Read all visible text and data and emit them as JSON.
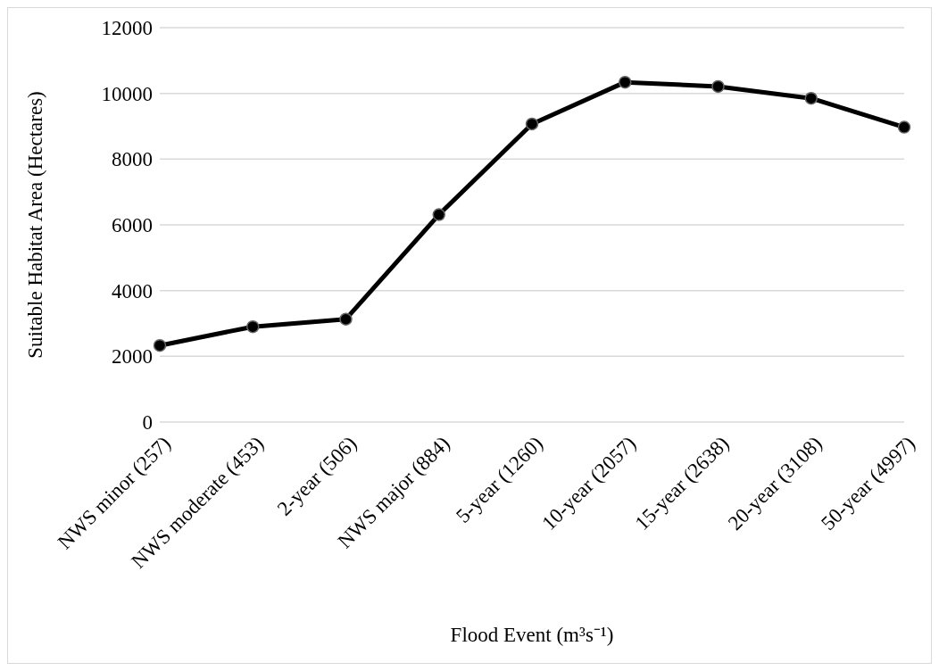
{
  "chart_data": {
    "type": "line",
    "xlabel": "Flood Event  (m³s⁻¹)",
    "ylabel": "Suitable Habitat Area (Hectares)",
    "categories": [
      "NWS minor (257)",
      "NWS moderate (453)",
      "2-year (506)",
      "NWS major (884)",
      "5-year (1260)",
      "10-year (2057)",
      "15-year (2638)",
      "20-year (3108)",
      "50-year (4997)"
    ],
    "series": [
      {
        "color": "#000000",
        "values": [
          2330,
          2900,
          3130,
          6310,
          9070,
          10340,
          10210,
          9850,
          8970
        ]
      }
    ],
    "ylim": [
      0,
      12000
    ],
    "yticks": [
      0,
      2000,
      4000,
      6000,
      8000,
      10000,
      12000
    ],
    "grid": "y",
    "legend": false,
    "marker": "circle",
    "line_style": "solid"
  }
}
